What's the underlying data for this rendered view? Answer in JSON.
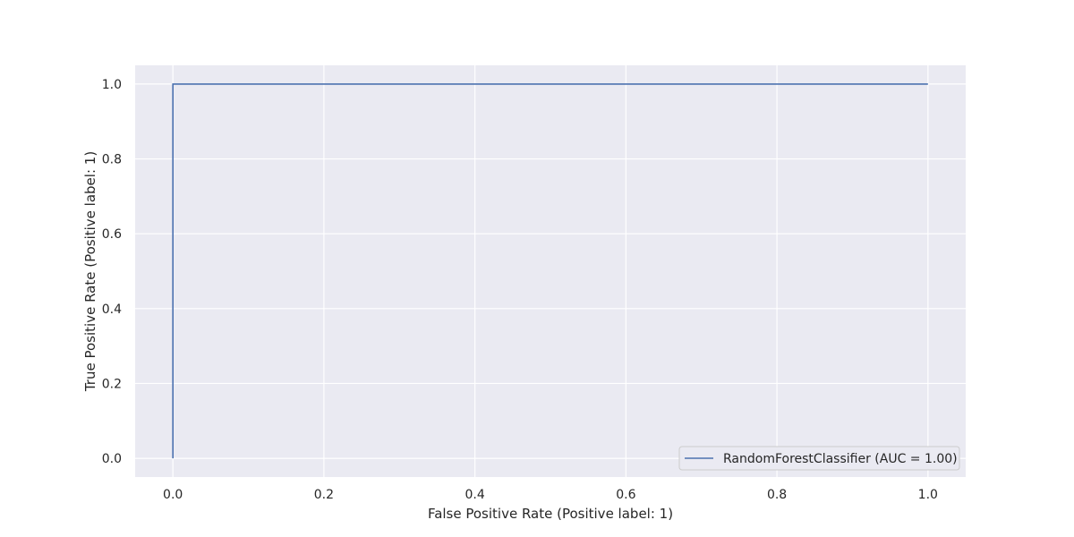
{
  "chart_data": {
    "type": "line",
    "title": "",
    "xlabel": "False Positive Rate (Positive label: 1)",
    "ylabel": "True Positive Rate (Positive label: 1)",
    "xlim": [
      -0.05,
      1.05
    ],
    "ylim": [
      -0.05,
      1.05
    ],
    "xticks": [
      0.0,
      0.2,
      0.4,
      0.6,
      0.8,
      1.0
    ],
    "yticks": [
      0.0,
      0.2,
      0.4,
      0.6,
      0.8,
      1.0
    ],
    "xtick_labels": [
      "0.0",
      "0.2",
      "0.4",
      "0.6",
      "0.8",
      "1.0"
    ],
    "ytick_labels": [
      "0.0",
      "0.2",
      "0.4",
      "0.6",
      "0.8",
      "1.0"
    ],
    "grid": true,
    "legend_position": "lower-right",
    "series": [
      {
        "name": "RandomForestClassifier (AUC = 1.00)",
        "x": [
          0.0,
          0.0,
          1.0
        ],
        "y": [
          0.0,
          1.0,
          1.0
        ]
      }
    ],
    "colors": {
      "plot_background": "#eaeaf2",
      "grid": "#ffffff",
      "series_line": "#4c72b0",
      "text": "#262626",
      "legend_border": "#cccccc"
    }
  }
}
